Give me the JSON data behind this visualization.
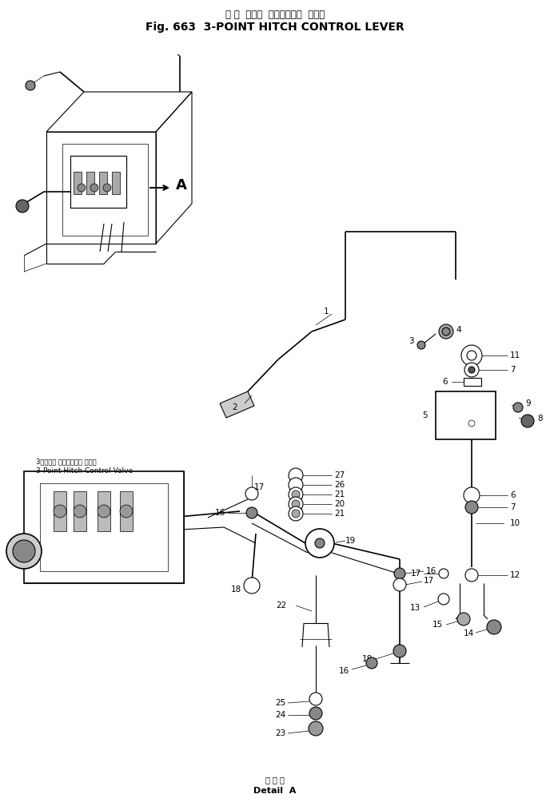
{
  "title_japanese": "３ 点  ヒッチ  コントロール  レバー",
  "title_english": "Fig. 663  3-POINT HITCH CONTROL LEVER",
  "detail_japanese": "Ａ 部 詳",
  "detail_english": "Detail  A",
  "bg": "#ffffff",
  "lc": "#000000",
  "fig_width": 6.88,
  "fig_height": 10.14,
  "dpi": 100
}
